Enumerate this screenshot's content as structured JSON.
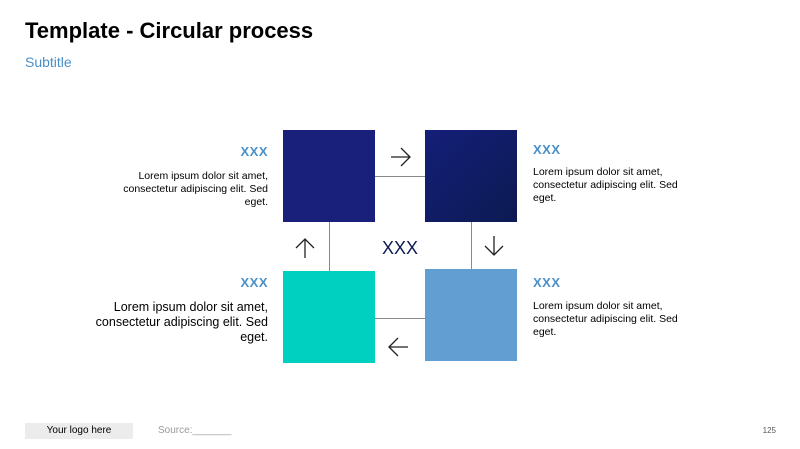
{
  "header": {
    "title": "Template - Circular process",
    "subtitle": "Subtitle"
  },
  "diagram": {
    "center_label": "XXX",
    "steps": [
      {
        "heading": "XXX",
        "text": "Lorem ipsum dolor sit amet, consectetur adipiscing elit. Sed eget.",
        "color": "#18207c"
      },
      {
        "heading": "XXX",
        "text": "Lorem ipsum dolor sit amet, consectetur adipiscing elit. Sed eget.",
        "color": "#0c1a52"
      },
      {
        "heading": "XXX",
        "text": "Lorem ipsum dolor sit amet, consectetur adipiscing elit. Sed eget.",
        "color": "#629ed1"
      },
      {
        "heading": "XXX",
        "text": "Lorem ipsum dolor sit amet, consectetur adipiscing elit. Sed eget.",
        "color": "#00d0c0"
      }
    ],
    "arrows": [
      "arrow-right-icon",
      "arrow-down-icon",
      "arrow-left-icon",
      "arrow-up-icon"
    ]
  },
  "footer": {
    "logo": "Your logo here",
    "source": "Source:_______",
    "page_number": "125"
  },
  "colors": {
    "heading_accent": "#4a90c8",
    "connector": "#8a8a8a"
  }
}
